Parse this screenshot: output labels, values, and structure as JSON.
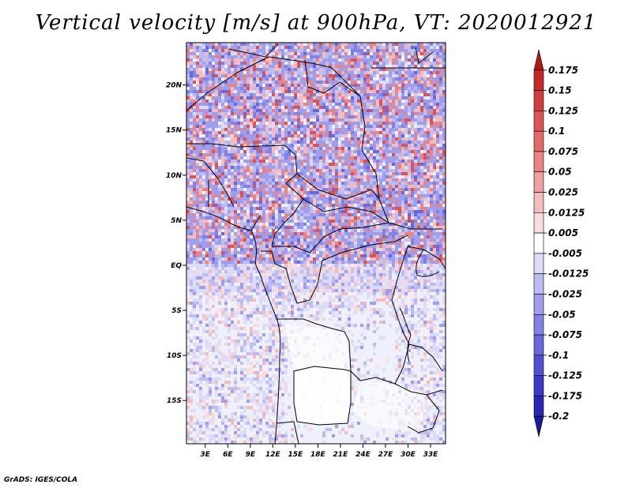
{
  "title": "Vertical velocity [m/s] at 900hPa, VT: 2020012921",
  "credit": "GrADS: IGES/COLA",
  "map": {
    "lat_labels": [
      "20N",
      "15N",
      "10N",
      "5N",
      "EQ",
      "5S",
      "10S",
      "15S"
    ],
    "lat_values": [
      20,
      15,
      10,
      5,
      0,
      -5,
      -10,
      -15
    ],
    "lon_labels": [
      "3E",
      "6E",
      "9E",
      "12E",
      "15E",
      "18E",
      "21E",
      "24E",
      "27E",
      "30E",
      "33E"
    ],
    "lon_values": [
      3,
      6,
      9,
      12,
      15,
      18,
      21,
      24,
      27,
      30,
      33
    ],
    "lon_range": [
      0.5,
      35
    ],
    "lat_range": [
      -19.8,
      24.7
    ]
  },
  "colorbar": {
    "labels": [
      "0.175",
      "0.15",
      "0.125",
      "0.1",
      "0.075",
      "0.05",
      "0.025",
      "0.0125",
      "0.005",
      "-0.005",
      "-0.0125",
      "-0.025",
      "-0.05",
      "-0.075",
      "-0.1",
      "-0.125",
      "-0.175",
      "-0.2"
    ],
    "colors": [
      "#b01818",
      "#c42828",
      "#d23c3c",
      "#dd5252",
      "#e46a6a",
      "#ea8484",
      "#efa0a0",
      "#f4bcbc",
      "#f9dcdc",
      "#ffffff",
      "#dcdcfa",
      "#bcbcf4",
      "#9e9eec",
      "#8282e4",
      "#6868dc",
      "#5050d2",
      "#3a3ac6",
      "#2828b6",
      "#1a1a9e"
    ]
  }
}
